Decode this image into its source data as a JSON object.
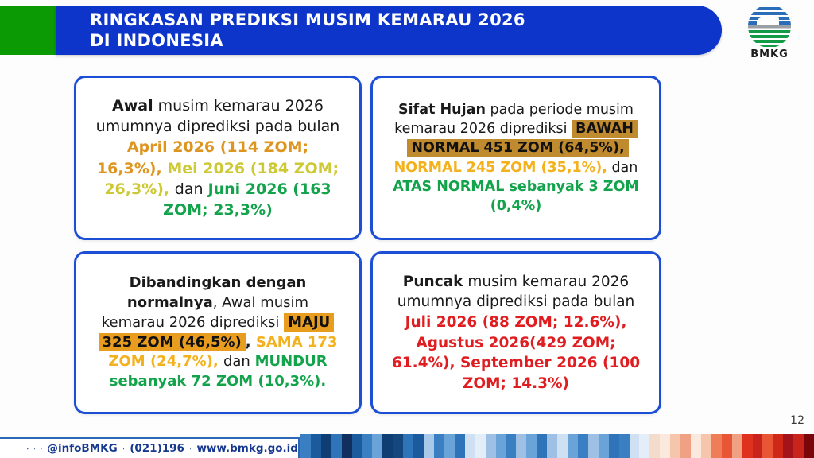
{
  "header": {
    "title_line1": "RINGKASAN PREDIKSI MUSIM KEMARAU 2026",
    "title_line2": "DI INDONESIA",
    "logo_label": "BMKG"
  },
  "colors": {
    "banner_blue": "#0e35c9",
    "accent_green": "#0b9a04",
    "card_border": "#1d4fd6",
    "footer_navy": "#16388f",
    "text_dark": "#1a1a1a",
    "page_bg": "#fdfdfd"
  },
  "cards": [
    {
      "id": "awal-musim",
      "segments": [
        {
          "text": "Awal",
          "bold": true,
          "color": "#1a1a1a"
        },
        {
          "text": " musim kemarau 2026 umumnya diprediksi pada bulan ",
          "color": "#1a1a1a"
        },
        {
          "text": "April 2026 (114 ZOM; 16,3%), ",
          "bold": true,
          "color": "#dd951f"
        },
        {
          "text": "Mei 2026 (184 ZOM; 26,3%), ",
          "bold": true,
          "color": "#cdc935"
        },
        {
          "text": "dan ",
          "color": "#1a1a1a"
        },
        {
          "text": "Juni 2026 (163 ZOM; 23,3%)",
          "bold": true,
          "color": "#12a34b"
        }
      ]
    },
    {
      "id": "sifat-hujan",
      "segments": [
        {
          "text": "Sifat Hujan",
          "bold": true,
          "color": "#1a1a1a"
        },
        {
          "text": " pada periode musim kemarau 2026 diprediksi ",
          "color": "#1a1a1a"
        },
        {
          "text": "BAWAH NORMAL 451 ZOM (64,5%),",
          "bold": true,
          "color": "#111111",
          "highlight": "#c08a2e"
        },
        {
          "text": " ",
          "color": "#1a1a1a"
        },
        {
          "text": "NORMAL 245 ZOM (35,1%),",
          "bold": true,
          "color": "#f3b11d"
        },
        {
          "text": " dan ",
          "color": "#1a1a1a"
        },
        {
          "text": "ATAS NORMAL sebanyak 3 ZOM (0,4%)",
          "bold": true,
          "color": "#12a34b"
        }
      ]
    },
    {
      "id": "dibandingkan-normal",
      "segments": [
        {
          "text": "Dibandingkan dengan normalnya",
          "bold": true,
          "color": "#1a1a1a"
        },
        {
          "text": ", Awal musim kemarau 2026 diprediksi ",
          "color": "#1a1a1a"
        },
        {
          "text": "MAJU 325 ZOM (46,5%)",
          "bold": true,
          "color": "#111111",
          "highlight": "#e89d1e"
        },
        {
          "text": ", ",
          "bold": true,
          "color": "#1a1a1a"
        },
        {
          "text": "SAMA 173 ZOM (24,7%), ",
          "bold": true,
          "color": "#f3b11d"
        },
        {
          "text": "dan ",
          "color": "#1a1a1a"
        },
        {
          "text": "MUNDUR sebanyak 72 ZOM (10,3%).",
          "bold": true,
          "color": "#12a34b"
        }
      ]
    },
    {
      "id": "puncak-musim",
      "segments": [
        {
          "text": "Puncak",
          "bold": true,
          "color": "#1a1a1a"
        },
        {
          "text": " musim kemarau 2026 umumnya diprediksi pada bulan ",
          "color": "#1a1a1a"
        },
        {
          "text": "Juli 2026 (88 ZOM; 12.6%), Agustus 2026(429 ZOM; 61.4%), September 2026 (100 ZOM; 14.3%)",
          "bold": true,
          "color": "#e01d20"
        }
      ]
    }
  ],
  "footer": {
    "social_handle": "@infoBMKG",
    "phone": "(021)196",
    "website": "www.bmkg.go.id",
    "icons": [
      "instagram-icon",
      "facebook-icon",
      "x-icon",
      "phone-icon",
      "globe-icon"
    ],
    "page_number": "12",
    "stripes": [
      "#3a7fc2",
      "#1c5a9e",
      "#0f3e74",
      "#2f74b8",
      "#102f5e",
      "#1c5a9e",
      "#3a7fc2",
      "#6aa3d8",
      "#0f3e74",
      "#14477e",
      "#2f74b8",
      "#1c5a9e",
      "#a9c9e8",
      "#3a7fc2",
      "#6aa3d8",
      "#2f74b8",
      "#cfe0f2",
      "#e4eef8",
      "#9dc0e4",
      "#6aa3d8",
      "#3a7fc2",
      "#9dc0e4",
      "#6aa3d8",
      "#2f74b8",
      "#9dc0e4",
      "#cfe0f2",
      "#6aa3d8",
      "#3a7fc2",
      "#9dc0e4",
      "#6aa3d8",
      "#2f74b8",
      "#3a7fc2",
      "#cfe0f2",
      "#e4eef8",
      "#f4dccc",
      "#fbe9dd",
      "#f6c6ac",
      "#f1a183",
      "#fbe9dd",
      "#f6c6ac",
      "#ee7e58",
      "#e85636",
      "#f1a183",
      "#e0301e",
      "#c9241c",
      "#e85636",
      "#d02818",
      "#a5131a",
      "#c9241c",
      "#7a060c"
    ]
  }
}
